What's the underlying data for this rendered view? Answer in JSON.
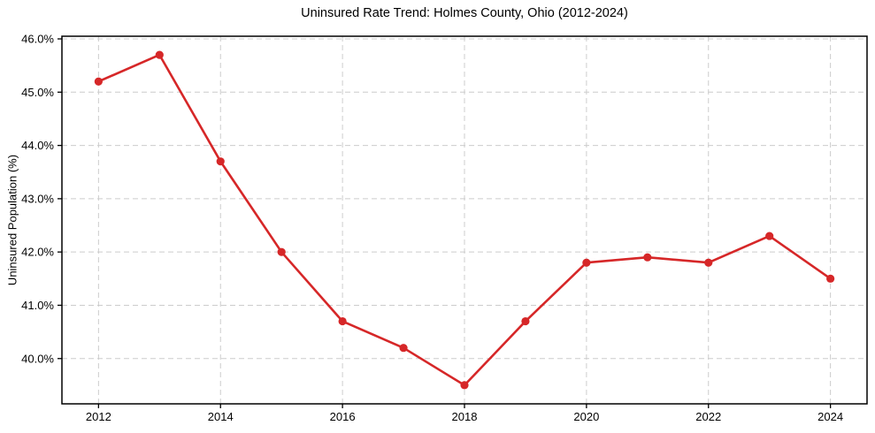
{
  "chart_data": {
    "type": "line",
    "title": "Uninsured Rate Trend: Holmes County, Ohio (2012-2024)",
    "xlabel": "",
    "ylabel": "Uninsured Population (%)",
    "x": [
      2012,
      2013,
      2014,
      2015,
      2016,
      2017,
      2018,
      2019,
      2020,
      2021,
      2022,
      2023,
      2024
    ],
    "y": [
      45.2,
      45.7,
      43.7,
      42.0,
      40.7,
      40.2,
      39.5,
      40.7,
      41.8,
      41.9,
      41.8,
      42.3,
      41.5
    ],
    "x_ticks": [
      2012,
      2014,
      2016,
      2018,
      2020,
      2022,
      2024
    ],
    "x_tick_labels": [
      "2012",
      "2014",
      "2016",
      "2018",
      "2020",
      "2022",
      "2024"
    ],
    "y_ticks": [
      40,
      41,
      42,
      43,
      44,
      45,
      46
    ],
    "y_tick_labels": [
      "40.0%",
      "41.0%",
      "42.0%",
      "43.0%",
      "44.0%",
      "45.0%",
      "46.0%"
    ],
    "xlim": [
      2011.4,
      2024.6
    ],
    "ylim": [
      39.15,
      46.05
    ],
    "grid": true,
    "grid_style": "dashed",
    "grid_color": "#cccccc",
    "line_color": "#d62728",
    "marker": "circle",
    "legend": "none",
    "background_color": "#ffffff",
    "spine_color": "#000000"
  }
}
